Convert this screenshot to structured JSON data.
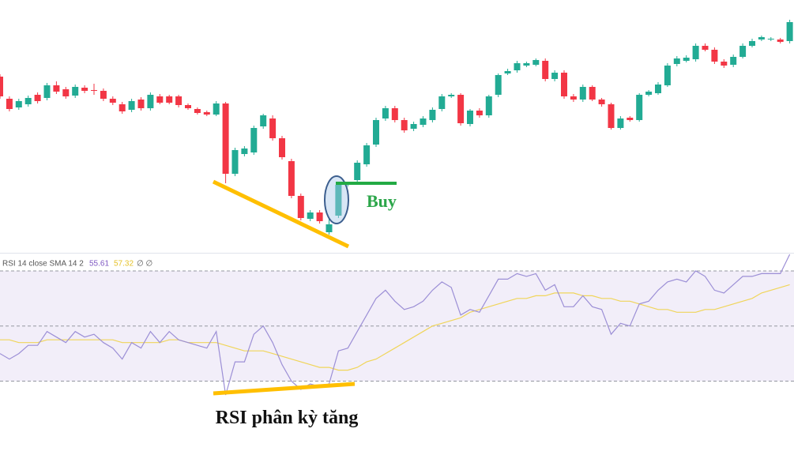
{
  "chart_data": [
    {
      "type": "candlestick",
      "annotation": "Buy",
      "up_color": "#22ab94",
      "down_color": "#f23645",
      "ylim": [
        280,
        600
      ],
      "open": [
        503,
        475,
        464,
        468,
        480,
        476,
        492,
        487,
        479,
        489,
        486,
        485,
        475,
        468,
        461,
        474,
        463,
        478,
        478,
        478,
        467,
        462,
        458,
        455,
        469,
        380,
        405,
        407,
        440,
        450,
        425,
        396,
        352,
        323,
        331,
        306,
        327,
        366,
        372,
        392,
        417,
        450,
        463,
        448,
        437,
        442,
        448,
        462,
        478,
        480,
        443,
        460,
        454,
        480,
        507,
        511,
        517,
        518,
        523,
        500,
        508,
        478,
        474,
        490,
        474,
        468,
        438,
        451,
        448,
        480,
        482,
        492,
        519,
        523,
        525,
        542,
        537,
        522,
        518,
        528,
        542,
        550,
        550,
        550,
        548
      ],
      "high": [
        506,
        478,
        475,
        479,
        483,
        495,
        497,
        490,
        493,
        492,
        494,
        488,
        478,
        471,
        475,
        477,
        483,
        481,
        480,
        480,
        469,
        464,
        460,
        472,
        471,
        413,
        415,
        441,
        456,
        454,
        428,
        399,
        355,
        334,
        334,
        324,
        369,
        370,
        397,
        419,
        451,
        466,
        466,
        451,
        446,
        453,
        464,
        481,
        482,
        482,
        462,
        463,
        480,
        507,
        513,
        523,
        522,
        526,
        526,
        511,
        511,
        481,
        493,
        492,
        476,
        470,
        453,
        453,
        482,
        486,
        496,
        520,
        529,
        530,
        545,
        545,
        540,
        525,
        531,
        545,
        551,
        555,
        553,
        552,
        575
      ],
      "low": [
        475,
        459,
        461,
        465,
        469,
        473,
        481,
        475,
        476,
        482,
        480,
        472,
        467,
        456,
        458,
        460,
        460,
        468,
        468,
        464,
        461,
        455,
        453,
        453,
        368,
        377,
        402,
        404,
        437,
        422,
        398,
        349,
        321,
        320,
        317,
        303,
        324,
        364,
        369,
        389,
        414,
        447,
        445,
        432,
        434,
        439,
        445,
        459,
        476,
        441,
        440,
        451,
        451,
        477,
        505,
        508,
        515,
        516,
        497,
        497,
        475,
        471,
        471,
        472,
        465,
        436,
        436,
        446,
        446,
        478,
        480,
        490,
        516,
        521,
        522,
        535,
        519,
        514,
        515,
        526,
        540,
        548,
        548,
        545,
        545
      ],
      "close": [
        478,
        462,
        472,
        476,
        472,
        492,
        484,
        478,
        490,
        485,
        485,
        475,
        470,
        459,
        472,
        463,
        480,
        470,
        470,
        467,
        463,
        457,
        455,
        469,
        380,
        410,
        412,
        438,
        454,
        425,
        401,
        352,
        324,
        331,
        320,
        316,
        366,
        368,
        394,
        416,
        448,
        463,
        448,
        435,
        443,
        450,
        461,
        478,
        480,
        444,
        460,
        454,
        478,
        505,
        510,
        520,
        520,
        524,
        500,
        508,
        478,
        474,
        490,
        474,
        468,
        438,
        450,
        448,
        480,
        484,
        493,
        517,
        526,
        527,
        542,
        537,
        522,
        517,
        528,
        542,
        548,
        553,
        551,
        547,
        572
      ]
    },
    {
      "type": "line",
      "title": "RSI 14 close SMA 14 2",
      "readouts": [
        55.61,
        57.32
      ],
      "readout_blank": "∅ ∅",
      "annotation": "RSI phân kỳ tăng",
      "ylim": [
        25,
        76
      ],
      "levels": [
        30,
        50,
        70
      ],
      "band_color": "#7e57c2",
      "series": [
        {
          "color": "#9c8fd6",
          "values": [
            40,
            38,
            40,
            43,
            43,
            48,
            46,
            44,
            48,
            46,
            47,
            44,
            42,
            38,
            44,
            42,
            48,
            44,
            48,
            45,
            44,
            43,
            42,
            48,
            25,
            37,
            37,
            47,
            50,
            44,
            36,
            30,
            27,
            29,
            28,
            29,
            41,
            42,
            48,
            54,
            60,
            63,
            59,
            56,
            57,
            59,
            63,
            66,
            64,
            54,
            56,
            55,
            61,
            67,
            67,
            69,
            68,
            69,
            63,
            65,
            57,
            57,
            61,
            57,
            56,
            47,
            51,
            50,
            58,
            59,
            63,
            66,
            67,
            66,
            70,
            68,
            63,
            62,
            65,
            68,
            68,
            69,
            69,
            69,
            76
          ]
        },
        {
          "color": "#f0d55a",
          "values": [
            45,
            45,
            44,
            44,
            44,
            45,
            45,
            45,
            45,
            45,
            45,
            45,
            45,
            44,
            44,
            44,
            44,
            44,
            45,
            45,
            44,
            44,
            44,
            44,
            43,
            42,
            41,
            41,
            41,
            40,
            39,
            38,
            37,
            36,
            35,
            35,
            34,
            34,
            35,
            37,
            38,
            40,
            42,
            44,
            46,
            48,
            50,
            51,
            52,
            53,
            55,
            56,
            57,
            58,
            59,
            60,
            60,
            61,
            61,
            62,
            62,
            62,
            61,
            61,
            60,
            60,
            59,
            59,
            58,
            57,
            56,
            56,
            55,
            55,
            55,
            56,
            56,
            57,
            58,
            59,
            60,
            62,
            63,
            64,
            65
          ]
        }
      ]
    }
  ]
}
